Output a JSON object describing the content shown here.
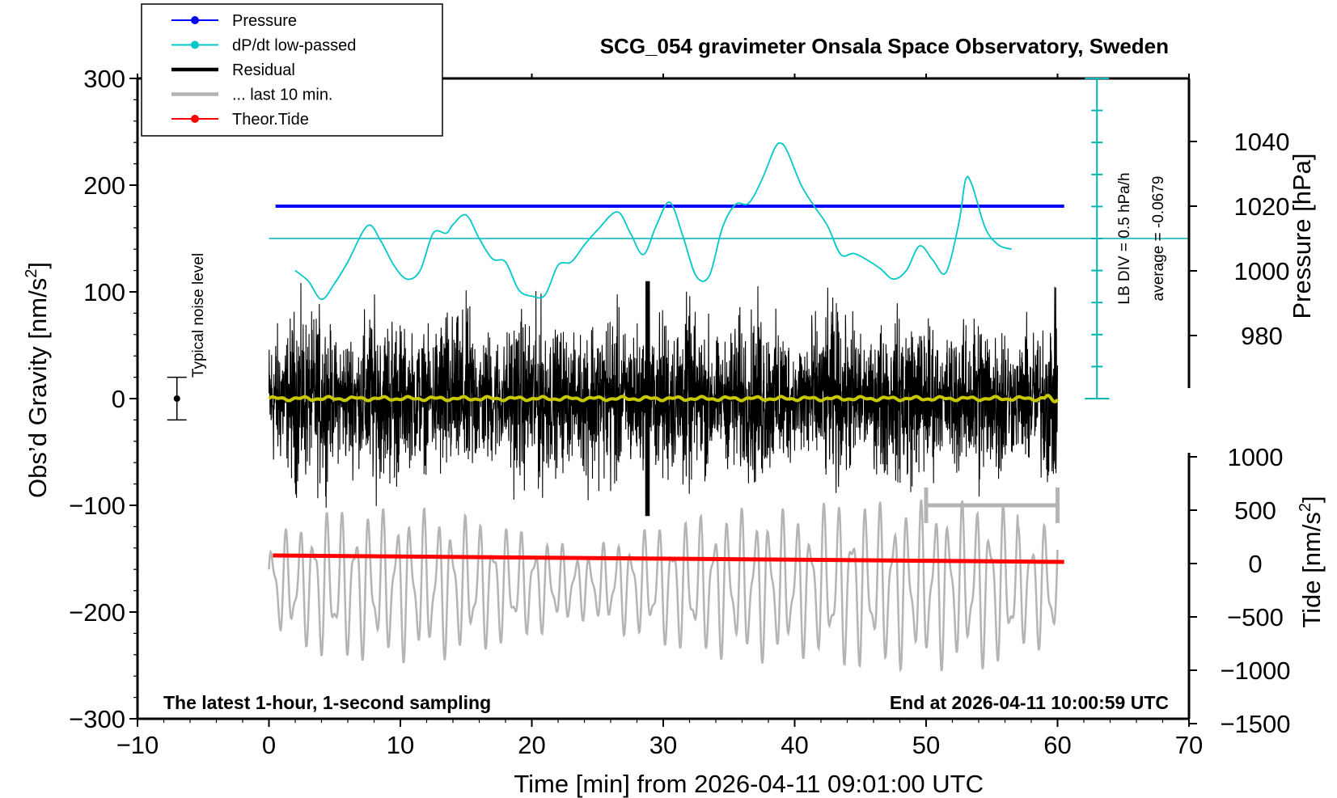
{
  "chart_data": {
    "type": "line",
    "title": "SCG_054 gravimeter Onsala Space Observatory, Sweden",
    "xlabel": "Time [min] from 2026-04-11 09:01:00 UTC",
    "ylabel_main": "Obs’d Gravity [nm/s",
    "ylabel_main_sup": "2",
    "ylabel_main_close": "]",
    "ylabel_pressure": "Pressure [hPa]",
    "ylabel_tide": "Tide [nm/s",
    "ylabel_tide_sup": "2",
    "ylabel_tide_close": "]",
    "xlim": [
      -10,
      70
    ],
    "ylim": [
      -300,
      300
    ],
    "x_ticks": [
      -10,
      0,
      10,
      20,
      30,
      40,
      50,
      60,
      70
    ],
    "x_tick_labels": [
      "−10",
      "0",
      "10",
      "20",
      "30",
      "40",
      "50",
      "60",
      "70"
    ],
    "y_ticks": [
      -300,
      -200,
      -100,
      0,
      100,
      200,
      300
    ],
    "y_tick_labels": [
      "−300",
      "−200",
      "−100",
      "0",
      "100",
      "200",
      "300"
    ],
    "pressure_ticks": [
      980,
      1000,
      1020,
      1040
    ],
    "pressure_tick_labels": [
      "980",
      "1000",
      "1020",
      "1040"
    ],
    "pressure_range": [
      960,
      1060
    ],
    "tide_ticks": [
      -1500,
      -1000,
      -500,
      0,
      500,
      1000
    ],
    "tide_tick_labels": [
      "−1500",
      "−1000",
      "−500",
      "0",
      "500",
      "1000"
    ],
    "tide_range": [
      -1500,
      1100
    ],
    "legend": [
      {
        "label": "Pressure",
        "color": "#0000ff",
        "marker": true
      },
      {
        "label": "dP/dt low-passed",
        "color": "#00c8c8",
        "marker": true
      },
      {
        "label": "Residual",
        "color": "#000000",
        "marker": false
      },
      {
        "label": "... last 10 min.",
        "color": "#b4b4b4",
        "marker": false
      },
      {
        "label": "Theor.Tide",
        "color": "#ff0000",
        "marker": true
      }
    ],
    "pressure": {
      "value_hPa": 1020,
      "x_start": 0.5,
      "x_end": 60.5
    },
    "dpdt_lowpassed": {
      "reference_y": 150,
      "x": [
        2,
        3,
        4,
        5,
        6,
        7.5,
        8.5,
        9.5,
        10.5,
        11.5,
        12.5,
        13.5,
        14,
        15,
        16,
        17,
        18,
        19,
        20,
        21,
        22,
        23,
        24,
        25,
        26.5,
        27.5,
        28.5,
        29.5,
        30.5,
        31.5,
        32.5,
        33.5,
        34.5,
        35.5,
        36.5,
        37.5,
        38.5,
        39,
        39.5,
        40.5,
        41.5,
        42.5,
        43.5,
        44.5,
        45.5,
        46.5,
        47.5,
        48.5,
        49.5,
        50.5,
        51.5,
        52.5,
        53,
        53.5,
        54.5,
        55.5,
        56.5
      ],
      "y": [
        120,
        110,
        93,
        108,
        128,
        162,
        148,
        125,
        112,
        120,
        155,
        155,
        163,
        172,
        150,
        131,
        128,
        102,
        96,
        97,
        125,
        128,
        144,
        158,
        175,
        155,
        135,
        163,
        184,
        152,
        115,
        115,
        160,
        182,
        183,
        205,
        235,
        239,
        230,
        200,
        180,
        162,
        135,
        136,
        130,
        122,
        112,
        120,
        143,
        130,
        118,
        165,
        205,
        200,
        160,
        144,
        140
      ]
    },
    "residual": {
      "x_start": 0,
      "x_end": 60,
      "y_min": -118,
      "y_max": 128,
      "smoothed_level": 0
    },
    "last_10_min": {
      "x_start": 50,
      "x_end": 60,
      "y": -100
    },
    "theor_tide": {
      "x_start": 0.3,
      "x_end": 60.5,
      "y_start": -147,
      "y_end": -153
    },
    "tide_trace": {
      "x_start": 0,
      "x_end": 60,
      "center": -175,
      "amplitude": 70
    },
    "noise_level": {
      "label": "Typical noise level",
      "x": -7,
      "y": 0,
      "error": 20
    },
    "pressure_scale": {
      "label": "LB DIV = 0.5 hPa/h",
      "average_label": "average = -0.0679",
      "x": 63
    },
    "footer_left": "The latest 1-hour, 1-second sampling",
    "footer_right": "End at 2026-04-11 10:00:59 UTC"
  }
}
